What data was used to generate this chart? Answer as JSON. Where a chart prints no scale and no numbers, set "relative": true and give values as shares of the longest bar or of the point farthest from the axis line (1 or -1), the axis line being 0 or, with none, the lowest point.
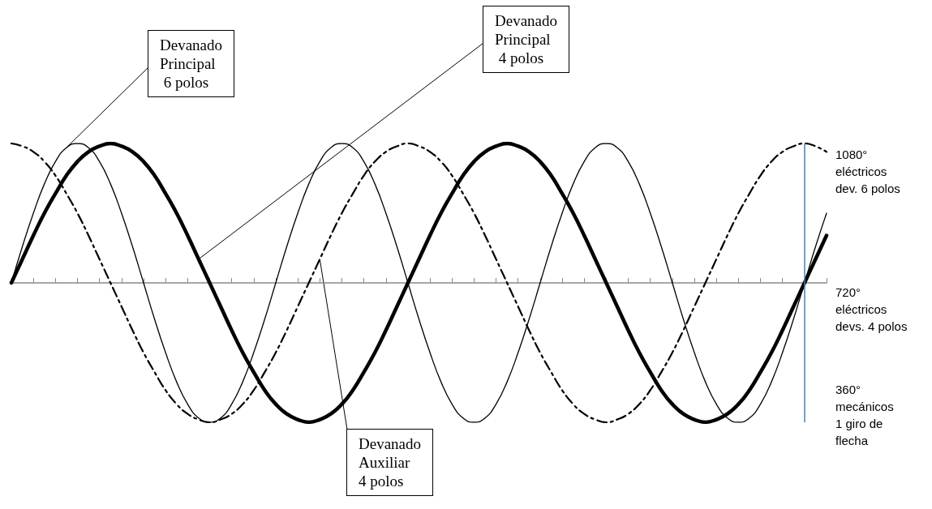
{
  "chart_data": {
    "type": "line",
    "relative": true,
    "grid": false,
    "marker": "none",
    "categories": [
      null,
      null,
      null,
      null,
      null,
      null,
      null,
      null,
      null,
      null,
      null,
      null,
      null,
      null,
      null,
      null,
      null,
      null,
      null,
      null,
      null,
      null,
      null,
      null,
      null,
      null,
      null,
      null,
      null,
      null,
      null,
      null,
      null,
      null,
      null,
      null,
      null,
      null,
      null,
      null,
      null,
      null,
      null,
      null,
      null,
      null,
      null,
      null,
      null,
      null,
      null,
      null,
      null,
      null,
      null,
      null,
      null,
      null,
      null,
      null,
      null,
      null,
      null,
      null,
      null,
      null,
      null,
      null,
      null,
      null,
      null,
      null,
      null,
      null,
      null
    ],
    "series": [
      {
        "name": "Devanado\nPrincipal\n 6 polos",
        "color": "#000000",
        "line_style": "solid",
        "values": [
          0,
          0.26,
          0.5,
          0.71,
          0.87,
          0.97,
          1,
          0.97,
          0.87,
          0.71,
          0.5,
          0.26,
          0,
          -0.26,
          -0.5,
          -0.71,
          -0.87,
          -0.97,
          -1,
          -0.97,
          -0.87,
          -0.71,
          -0.5,
          -0.26,
          0,
          0.26,
          0.5,
          0.71,
          0.87,
          0.97,
          1,
          0.97,
          0.87,
          0.71,
          0.5,
          0.26,
          0,
          -0.26,
          -0.5,
          -0.71,
          -0.87,
          -0.97,
          -1,
          -0.97,
          -0.87,
          -0.71,
          -0.5,
          -0.26,
          0,
          0.26,
          0.5,
          0.71,
          0.87,
          0.97,
          1,
          0.97,
          0.87,
          0.71,
          0.5,
          0.26,
          0,
          -0.26,
          -0.5,
          -0.71,
          -0.87,
          -0.97,
          -1,
          -0.97,
          -0.87,
          -0.71,
          -0.5,
          -0.26,
          0,
          0.26,
          0.5
        ]
      },
      {
        "name": "Devanado\nPrincipal\n 4 polos",
        "color": "#000000",
        "line_style": "solid",
        "values": [
          0,
          0.17,
          0.34,
          0.5,
          0.64,
          0.77,
          0.87,
          0.94,
          0.98,
          1,
          0.98,
          0.94,
          0.87,
          0.77,
          0.64,
          0.5,
          0.34,
          0.17,
          0,
          -0.17,
          -0.34,
          -0.5,
          -0.64,
          -0.77,
          -0.87,
          -0.94,
          -0.98,
          -1,
          -0.98,
          -0.94,
          -0.87,
          -0.77,
          -0.64,
          -0.5,
          -0.34,
          -0.17,
          0,
          0.17,
          0.34,
          0.5,
          0.64,
          0.77,
          0.87,
          0.94,
          0.98,
          1,
          0.98,
          0.94,
          0.87,
          0.77,
          0.64,
          0.5,
          0.34,
          0.17,
          0,
          -0.17,
          -0.34,
          -0.5,
          -0.64,
          -0.77,
          -0.87,
          -0.94,
          -0.98,
          -1,
          -0.98,
          -0.94,
          -0.87,
          -0.77,
          -0.64,
          -0.5,
          -0.34,
          -0.17,
          0,
          0.17,
          0.34
        ]
      },
      {
        "name": "Devanado\nAuxiliar\n4 polos",
        "color": "#000000",
        "line_style": "dashed",
        "values": [
          1,
          0.98,
          0.94,
          0.87,
          0.77,
          0.64,
          0.5,
          0.34,
          0.17,
          0,
          -0.17,
          -0.34,
          -0.5,
          -0.64,
          -0.77,
          -0.87,
          -0.94,
          -0.98,
          -1,
          -0.98,
          -0.94,
          -0.87,
          -0.77,
          -0.64,
          -0.5,
          -0.34,
          -0.17,
          0,
          0.17,
          0.34,
          0.5,
          0.64,
          0.77,
          0.87,
          0.94,
          0.98,
          1,
          0.98,
          0.94,
          0.87,
          0.77,
          0.64,
          0.5,
          0.34,
          0.17,
          0,
          -0.17,
          -0.34,
          -0.5,
          -0.64,
          -0.77,
          -0.87,
          -0.94,
          -0.98,
          -1,
          -0.98,
          -0.94,
          -0.87,
          -0.77,
          -0.64,
          -0.5,
          -0.34,
          -0.17,
          0,
          0.17,
          0.34,
          0.5,
          0.64,
          0.77,
          0.87,
          0.94,
          0.98,
          1,
          0.98,
          0.94
        ]
      }
    ],
    "annotations": [
      "1080°\neléctricos\ndev. 6 polos",
      "720°\neléctricos\ndevs. 4 polos",
      "360°\nmecánicos\n1 giro de\nflecha"
    ]
  }
}
